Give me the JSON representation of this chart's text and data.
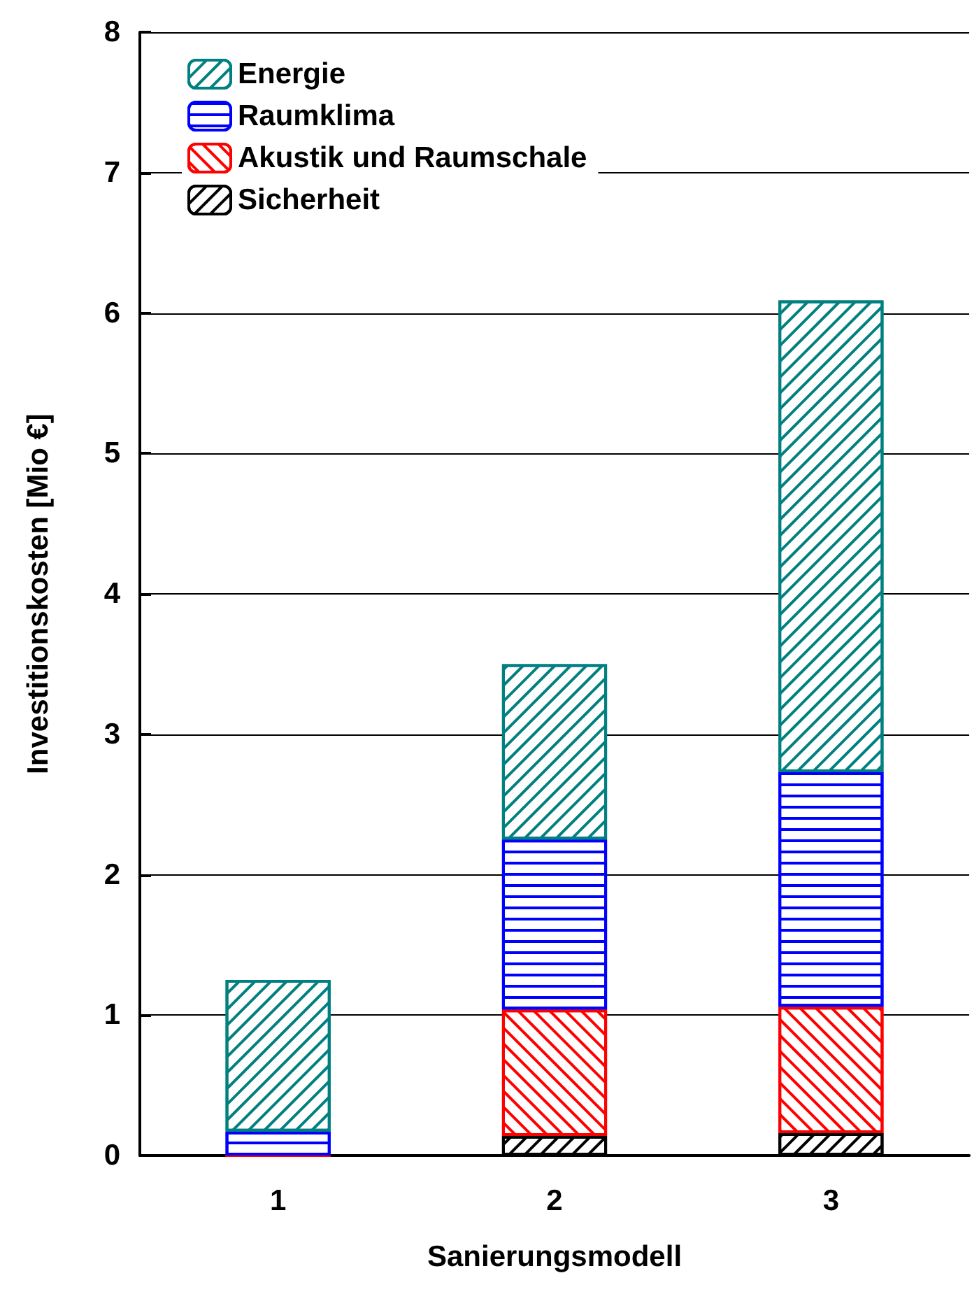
{
  "chart_data": {
    "type": "bar",
    "stacked": true,
    "xlabel": "Sanierungsmodell",
    "ylabel": "Investitionskosten [Mio €]",
    "categories": [
      "1",
      "2",
      "3"
    ],
    "series": [
      {
        "name": "Sicherheit",
        "color": "#000000",
        "values": [
          0,
          0.14,
          0.16
        ]
      },
      {
        "name": "Akustik und Raumschale",
        "color": "#ff0000",
        "values": [
          0,
          0.9,
          0.9
        ]
      },
      {
        "name": "Raumklima",
        "color": "#0000ff",
        "values": [
          0.17,
          1.21,
          1.67
        ]
      },
      {
        "name": "Energie",
        "color": "#008080",
        "values": [
          1.08,
          1.25,
          3.36
        ]
      }
    ],
    "ylim": [
      0,
      8
    ],
    "yticks": [
      0,
      1,
      2,
      3,
      4,
      5,
      6,
      7,
      8
    ],
    "grid": "y",
    "legend": "top left"
  }
}
